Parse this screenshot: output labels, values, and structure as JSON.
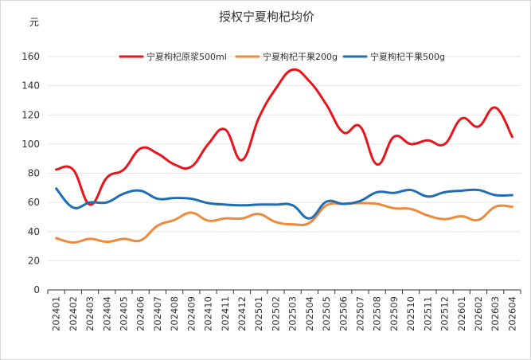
{
  "chart_data": {
    "type": "line",
    "title": "授权宁夏枸杞均价",
    "unit": "元",
    "categories": [
      "202401",
      "202402",
      "202403",
      "202404",
      "202405",
      "202406",
      "202407",
      "202408",
      "202409",
      "202410",
      "202411",
      "202412",
      "202501",
      "202502",
      "202503",
      "202504",
      "202505",
      "202506",
      "202507",
      "202508",
      "202509",
      "202510",
      "202511",
      "202512",
      "202601",
      "202602",
      "202603",
      "202604"
    ],
    "ylim": [
      0,
      160
    ],
    "yticks": [
      0,
      20,
      40,
      60,
      80,
      100,
      120,
      140,
      160
    ],
    "grid": true,
    "legend_position": "top",
    "series": [
      {
        "name": "宁夏枸杞原浆500ml",
        "color": "#e8141b",
        "values": [
          82.5,
          82.5,
          58.5,
          77,
          82.5,
          97,
          93.5,
          86,
          84.5,
          100,
          110,
          89,
          118,
          138,
          151,
          143,
          127,
          108,
          112,
          86,
          105,
          100,
          102.5,
          100,
          117.5,
          112,
          125,
          105
        ]
      },
      {
        "name": "宁夏枸杞干果200g",
        "color": "#ee8a3a",
        "values": [
          35.5,
          32.5,
          35,
          33,
          35,
          34,
          44,
          48,
          53,
          47.5,
          49,
          49,
          52,
          46.5,
          45,
          46,
          58,
          59,
          59.5,
          59,
          56,
          55.5,
          51,
          48.5,
          50.5,
          48,
          57,
          57
        ]
      },
      {
        "name": "宁夏枸杞干果500g",
        "color": "#1f6eb5",
        "values": [
          69.5,
          56.5,
          60,
          60,
          66,
          68,
          62.5,
          63,
          62.5,
          59.5,
          58.5,
          58,
          58.5,
          58.5,
          58,
          49,
          60.5,
          59,
          61,
          67,
          66.5,
          68.5,
          64,
          67,
          68,
          68.5,
          65,
          65
        ]
      }
    ]
  }
}
